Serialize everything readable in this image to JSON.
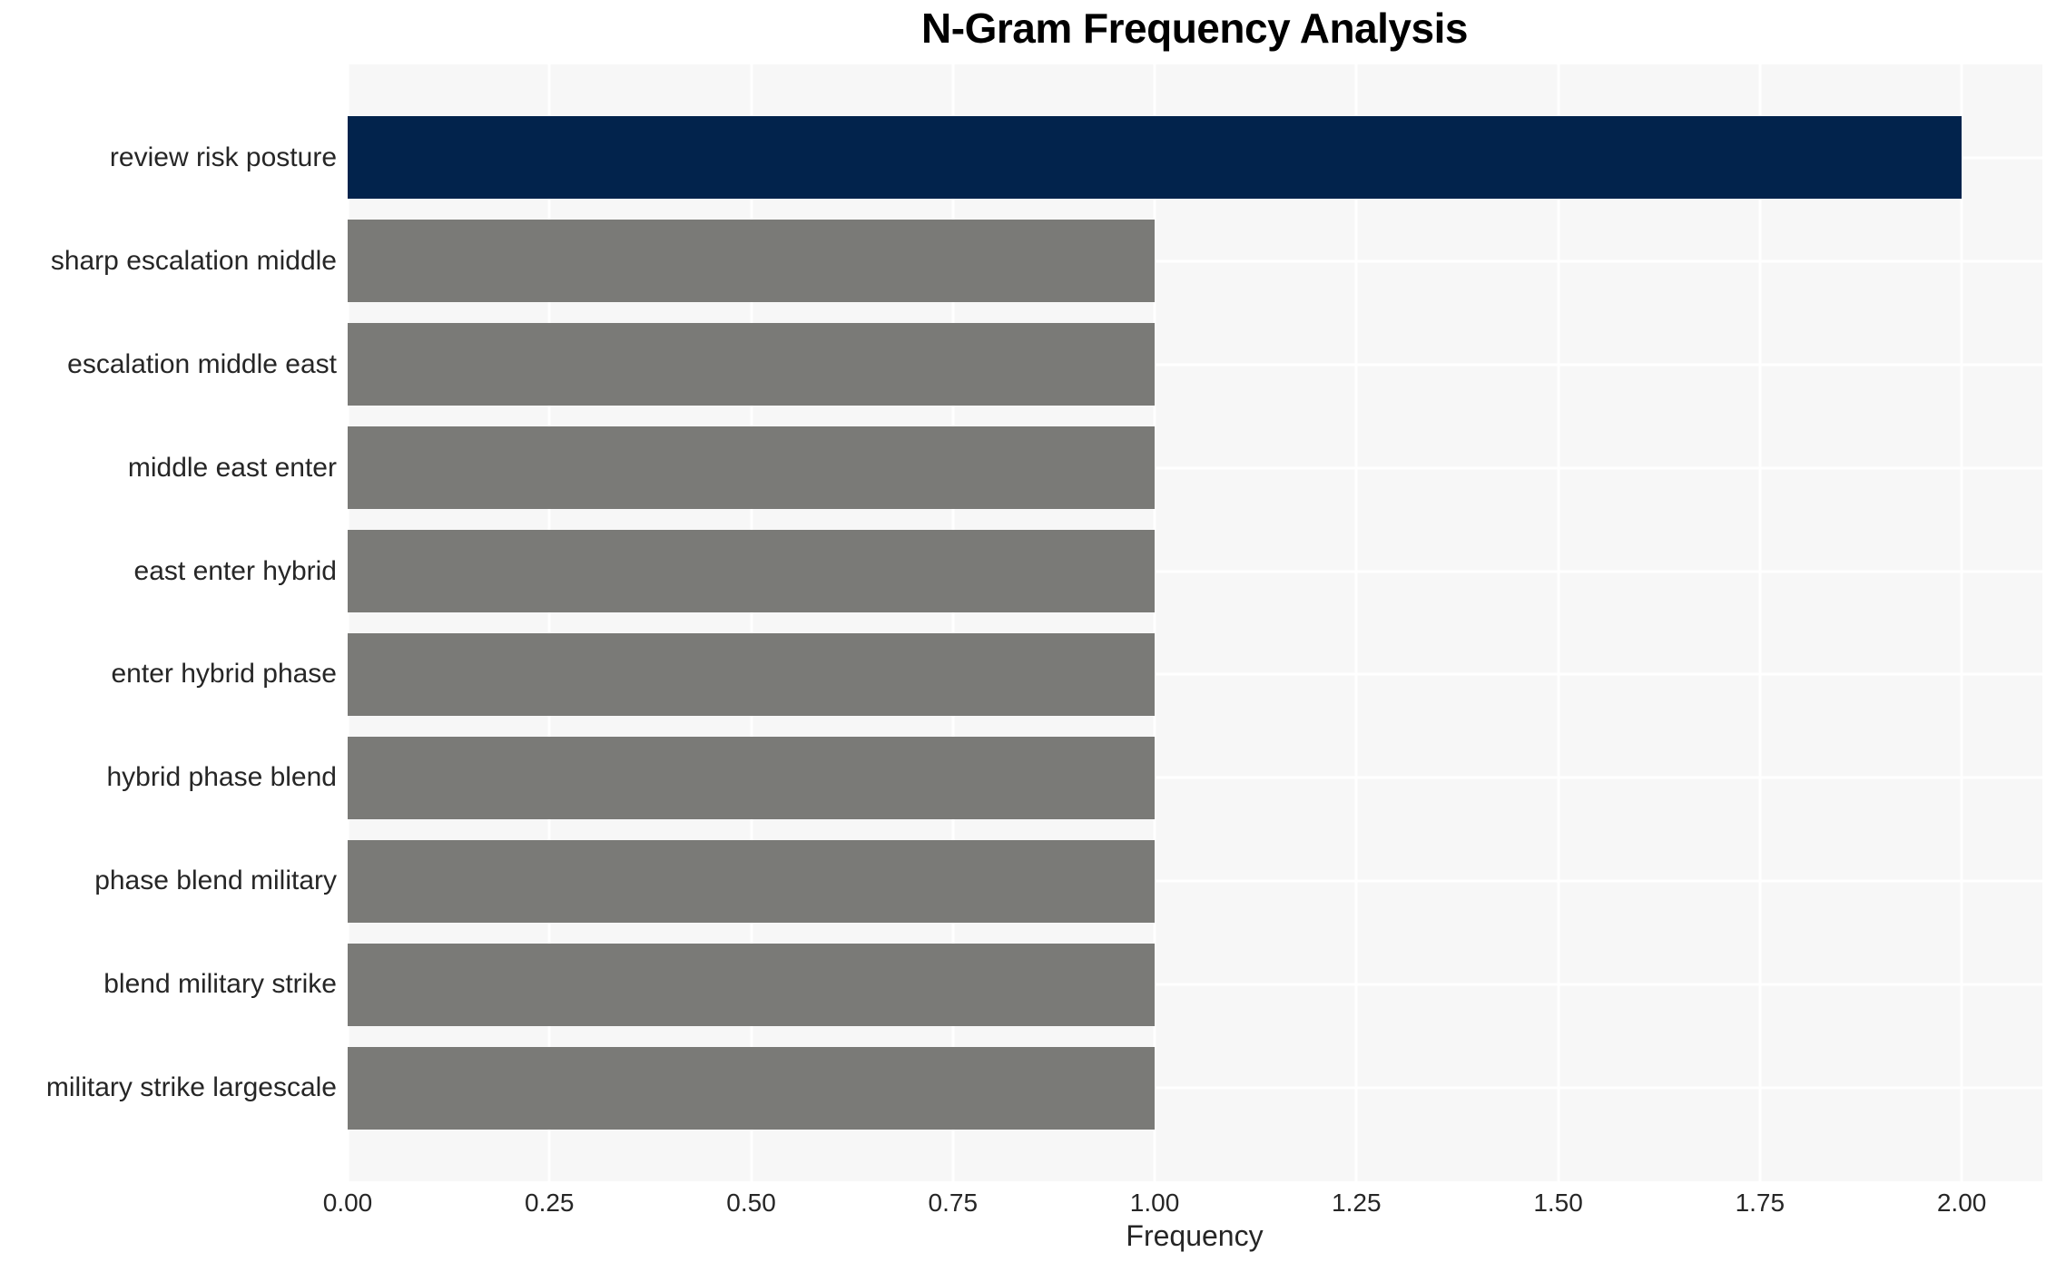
{
  "chart_data": {
    "type": "bar",
    "orientation": "horizontal",
    "title": "N-Gram Frequency Analysis",
    "xlabel": "Frequency",
    "ylabel": "",
    "categories": [
      "review risk posture",
      "sharp escalation middle",
      "escalation middle east",
      "middle east enter",
      "east enter hybrid",
      "enter hybrid phase",
      "hybrid phase blend",
      "phase blend military",
      "blend military strike",
      "military strike largescale"
    ],
    "values": [
      2,
      1,
      1,
      1,
      1,
      1,
      1,
      1,
      1,
      1
    ],
    "bar_colors": [
      "#02234c",
      "#7a7a77",
      "#7a7a77",
      "#7a7a77",
      "#7a7a77",
      "#7a7a77",
      "#7a7a77",
      "#7a7a77",
      "#7a7a77",
      "#7a7a77"
    ],
    "xlim": [
      0,
      2.1
    ],
    "xticks": [
      0.0,
      0.25,
      0.5,
      0.75,
      1.0,
      1.25,
      1.5,
      1.75,
      2.0
    ],
    "xtick_labels": [
      "0.00",
      "0.25",
      "0.50",
      "0.75",
      "1.00",
      "1.25",
      "1.50",
      "1.75",
      "2.00"
    ],
    "grid": true,
    "legend_position": "none",
    "colors": {
      "plot_background": "#f7f7f7",
      "figure_background": "#ffffff",
      "gridline": "#ffffff",
      "tick_text": "#262626",
      "title_text": "#000000"
    }
  }
}
